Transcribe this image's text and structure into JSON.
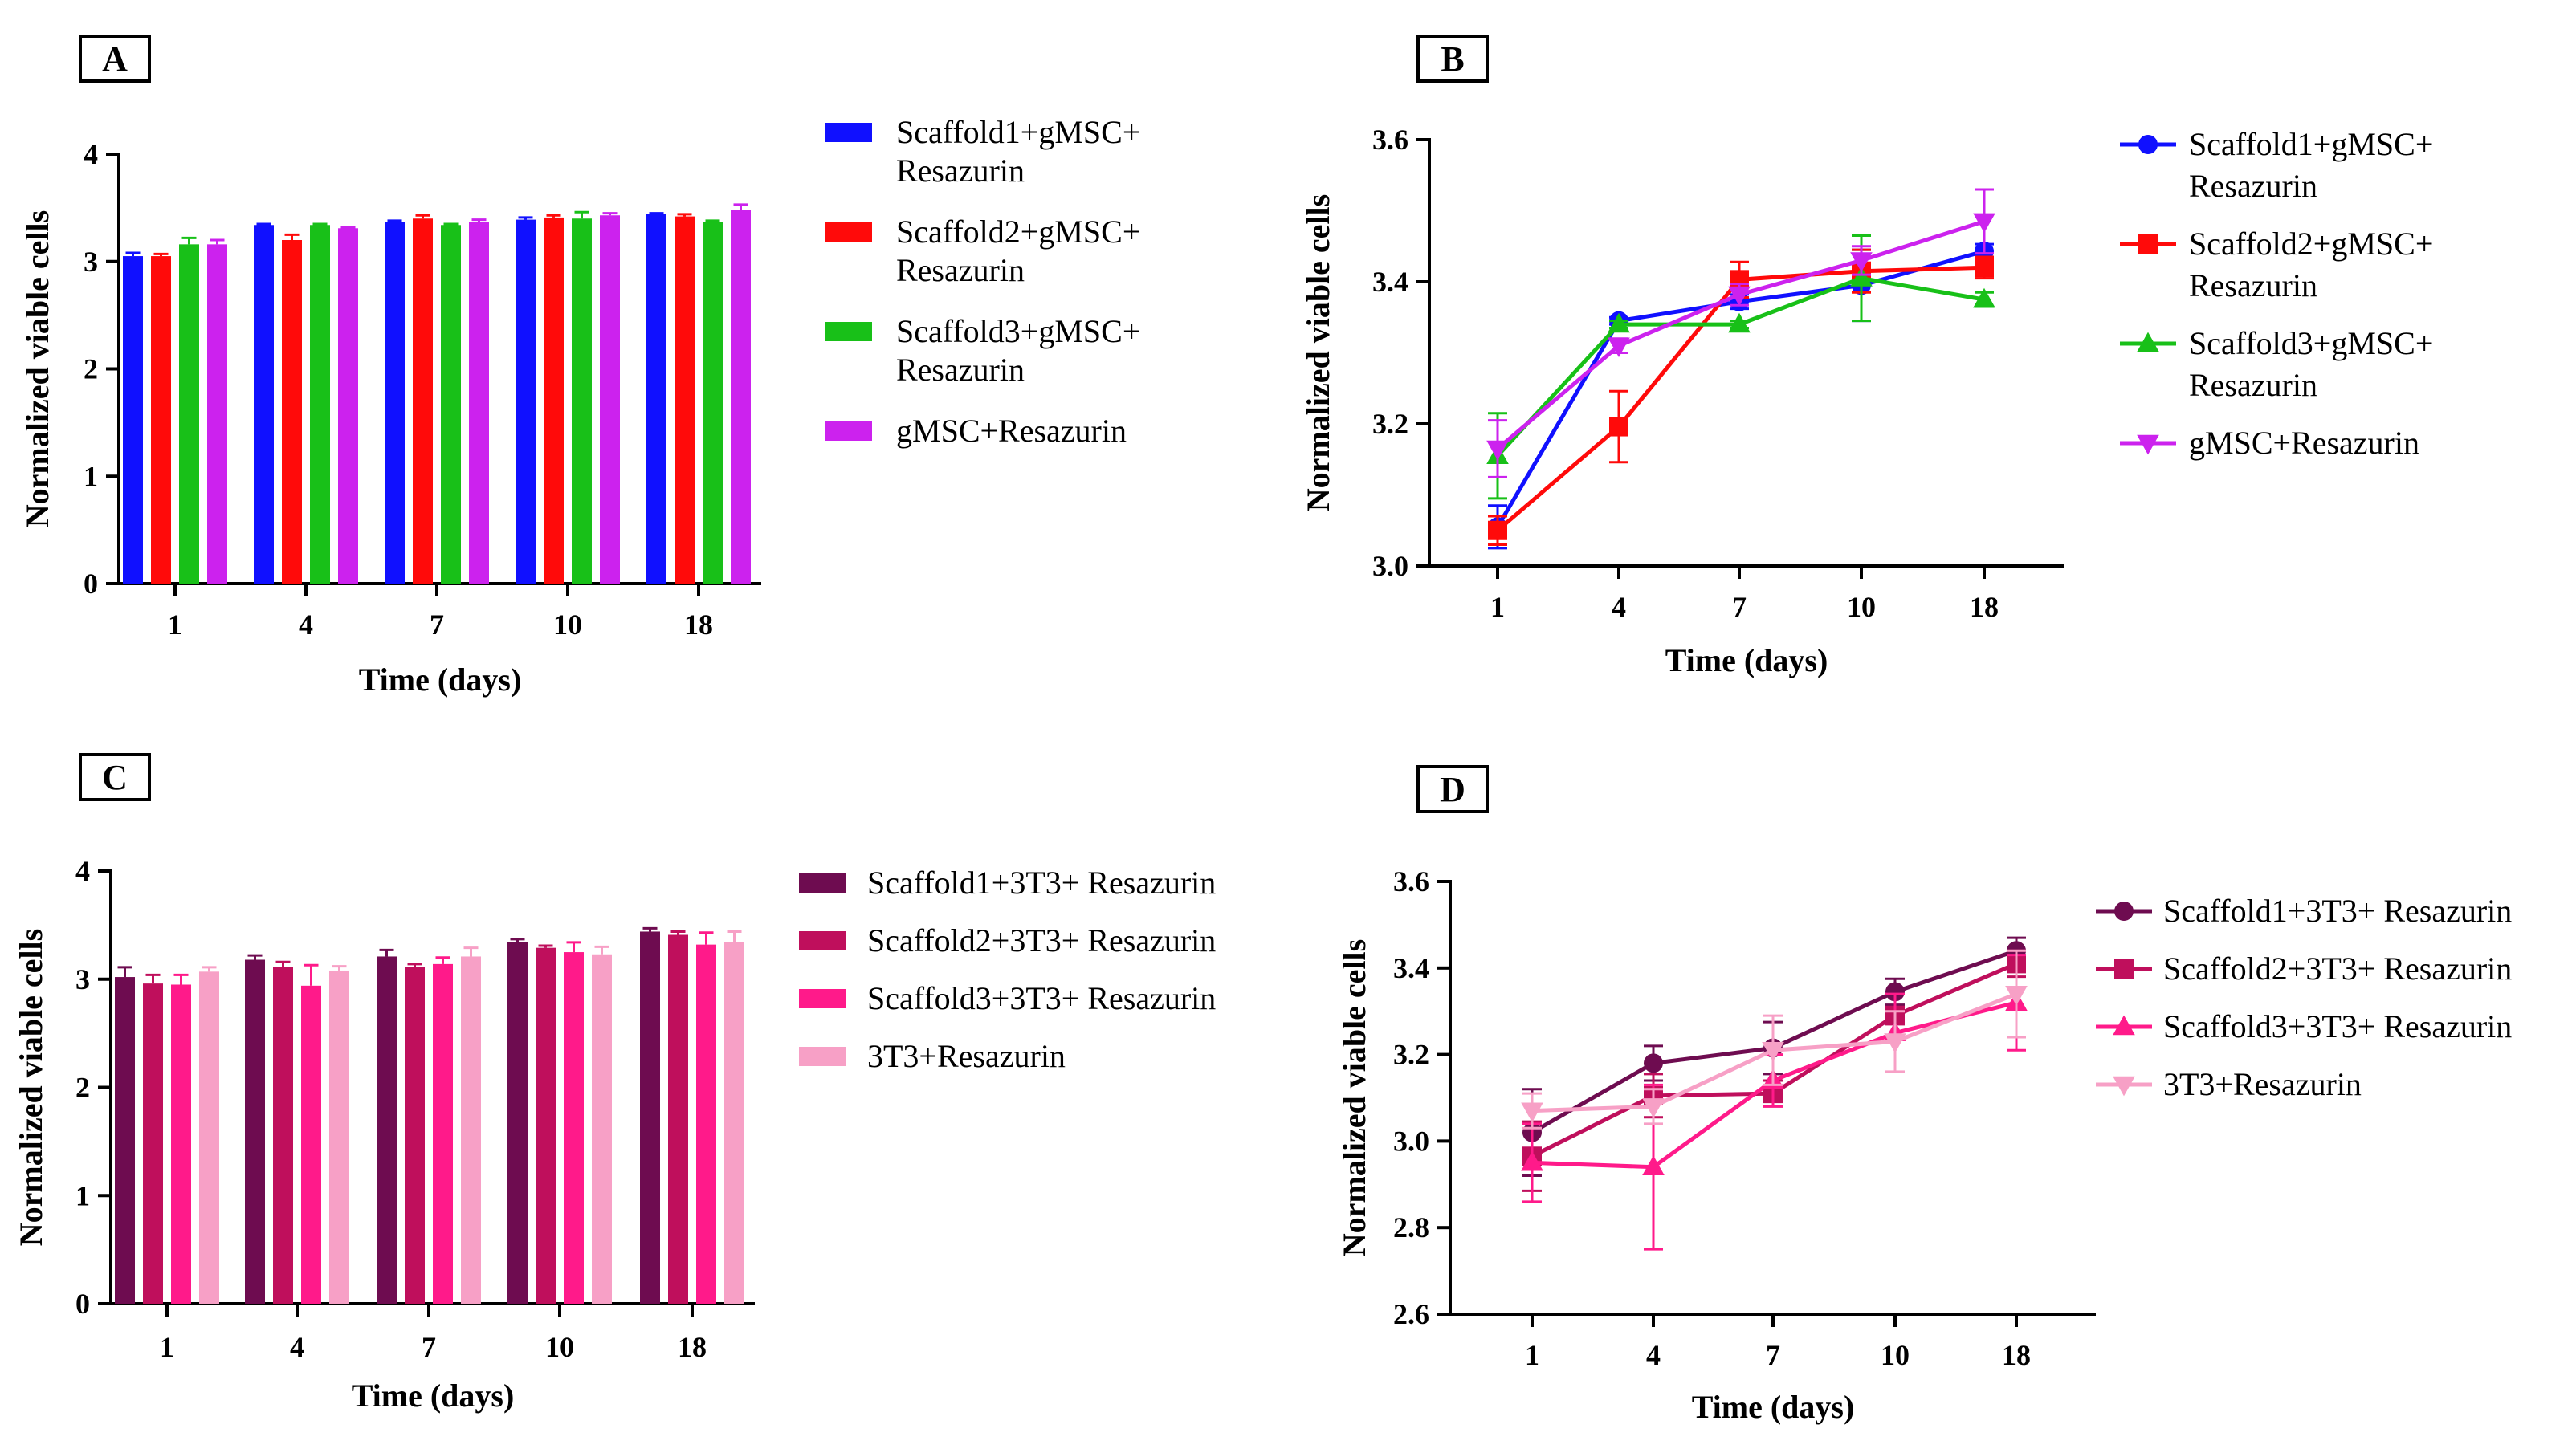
{
  "chart_data": [
    {
      "panel": "A",
      "type": "bar",
      "xlabel": "Time (days)",
      "ylabel": "Normalized viable cells",
      "ylim": [
        0,
        4
      ],
      "yticks": [
        "0",
        "1",
        "2",
        "3",
        "4"
      ],
      "categories": [
        "1",
        "4",
        "7",
        "10",
        "18"
      ],
      "series": [
        {
          "name": [
            "Scaffold1+gMSC+",
            "Resazurin"
          ],
          "color": "#1010ff",
          "values": [
            3.05,
            3.34,
            3.37,
            3.39,
            3.44
          ],
          "errors": [
            0.03,
            0.01,
            0.01,
            0.02,
            0.01
          ]
        },
        {
          "name": [
            "Scaffold2+gMSC+",
            "Resazurin"
          ],
          "color": "#ff0a0a",
          "values": [
            3.05,
            3.2,
            3.4,
            3.41,
            3.42
          ],
          "errors": [
            0.02,
            0.05,
            0.03,
            0.02,
            0.02
          ]
        },
        {
          "name": [
            "Scaffold3+gMSC+",
            "Resazurin"
          ],
          "color": "#18c018",
          "values": [
            3.16,
            3.34,
            3.34,
            3.4,
            3.37
          ],
          "errors": [
            0.06,
            0.01,
            0.01,
            0.06,
            0.01
          ]
        },
        {
          "name": [
            "gMSC+Resazurin"
          ],
          "color": "#cc22ee",
          "values": [
            3.16,
            3.31,
            3.37,
            3.43,
            3.48
          ],
          "errors": [
            0.04,
            0.01,
            0.02,
            0.02,
            0.05
          ]
        }
      ]
    },
    {
      "panel": "B",
      "type": "line",
      "xlabel": "Time (days)",
      "ylabel": "Normalized viable cells",
      "ylim": [
        3.0,
        3.6
      ],
      "yticks": [
        "3.0",
        "3.2",
        "3.4",
        "3.6"
      ],
      "categories": [
        "1",
        "4",
        "7",
        "10",
        "18"
      ],
      "series": [
        {
          "name": [
            "Scaffold1+gMSC+",
            "Resazurin"
          ],
          "color": "#1010ff",
          "marker": "circle",
          "values": [
            3.055,
            3.345,
            3.372,
            3.395,
            3.443
          ],
          "errors": [
            0.03,
            0.005,
            0.01,
            0.05,
            0.01
          ]
        },
        {
          "name": [
            "Scaffold2+gMSC+",
            "Resazurin"
          ],
          "color": "#ff0a0a",
          "marker": "square",
          "values": [
            3.05,
            3.196,
            3.403,
            3.415,
            3.42
          ],
          "errors": [
            0.02,
            0.05,
            0.025,
            0.03,
            0.015
          ]
        },
        {
          "name": [
            "Scaffold3+gMSC+",
            "Resazurin"
          ],
          "color": "#18c018",
          "marker": "triangle",
          "values": [
            3.155,
            3.34,
            3.34,
            3.405,
            3.375
          ],
          "errors": [
            0.06,
            0.005,
            0.005,
            0.06,
            0.01
          ]
        },
        {
          "name": [
            "gMSC+Resazurin"
          ],
          "color": "#cc22ee",
          "marker": "triangle-down",
          "values": [
            3.165,
            3.31,
            3.382,
            3.43,
            3.485
          ],
          "errors": [
            0.04,
            0.01,
            0.015,
            0.02,
            0.045
          ]
        }
      ]
    },
    {
      "panel": "C",
      "type": "bar",
      "xlabel": "Time (days)",
      "ylabel": "Normalized viable cells",
      "ylim": [
        0,
        4
      ],
      "yticks": [
        "0",
        "1",
        "2",
        "3",
        "4"
      ],
      "categories": [
        "1",
        "4",
        "7",
        "10",
        "18"
      ],
      "series": [
        {
          "name": [
            "Scaffold1+3T3+ Resazurin"
          ],
          "color": "#6e0c50",
          "values": [
            3.02,
            3.18,
            3.21,
            3.34,
            3.44
          ],
          "errors": [
            0.09,
            0.04,
            0.06,
            0.03,
            0.03
          ]
        },
        {
          "name": [
            "Scaffold2+3T3+ Resazurin"
          ],
          "color": "#bf0f5c",
          "values": [
            2.96,
            3.11,
            3.11,
            3.29,
            3.41
          ],
          "errors": [
            0.08,
            0.05,
            0.03,
            0.02,
            0.03
          ]
        },
        {
          "name": [
            "Scaffold3+3T3+ Resazurin"
          ],
          "color": "#ff1a8a",
          "values": [
            2.95,
            2.94,
            3.14,
            3.25,
            3.32
          ],
          "errors": [
            0.09,
            0.19,
            0.06,
            0.09,
            0.11
          ]
        },
        {
          "name": [
            "3T3+Resazurin"
          ],
          "color": "#f7a0c6",
          "values": [
            3.07,
            3.08,
            3.21,
            3.23,
            3.34
          ],
          "errors": [
            0.04,
            0.04,
            0.08,
            0.07,
            0.1
          ]
        }
      ]
    },
    {
      "panel": "D",
      "type": "line",
      "xlabel": "Time (days)",
      "ylabel": "Normalized viable cells",
      "ylim": [
        2.6,
        3.6
      ],
      "yticks": [
        "2.6",
        "2.8",
        "3.0",
        "3.2",
        "3.4",
        "3.6"
      ],
      "categories": [
        "1",
        "4",
        "7",
        "10",
        "18"
      ],
      "series": [
        {
          "name": [
            "Scaffold1+3T3+ Resazurin"
          ],
          "color": "#6e0c50",
          "marker": "circle",
          "values": [
            3.02,
            3.18,
            3.215,
            3.345,
            3.44
          ],
          "errors": [
            0.1,
            0.04,
            0.06,
            0.03,
            0.03
          ]
        },
        {
          "name": [
            "Scaffold2+3T3+ Resazurin"
          ],
          "color": "#bf0f5c",
          "marker": "square",
          "values": [
            2.965,
            3.105,
            3.11,
            3.29,
            3.41
          ],
          "errors": [
            0.08,
            0.05,
            0.03,
            0.02,
            0.03
          ]
        },
        {
          "name": [
            "Scaffold3+3T3+ Resazurin"
          ],
          "color": "#ff1a8a",
          "marker": "triangle",
          "values": [
            2.95,
            2.94,
            3.14,
            3.25,
            3.32
          ],
          "errors": [
            0.09,
            0.19,
            0.06,
            0.09,
            0.11
          ]
        },
        {
          "name": [
            "3T3+Resazurin"
          ],
          "color": "#f7a0c6",
          "marker": "triangle-down",
          "values": [
            3.07,
            3.08,
            3.21,
            3.23,
            3.34
          ],
          "errors": [
            0.04,
            0.04,
            0.08,
            0.07,
            0.1
          ]
        }
      ]
    }
  ]
}
